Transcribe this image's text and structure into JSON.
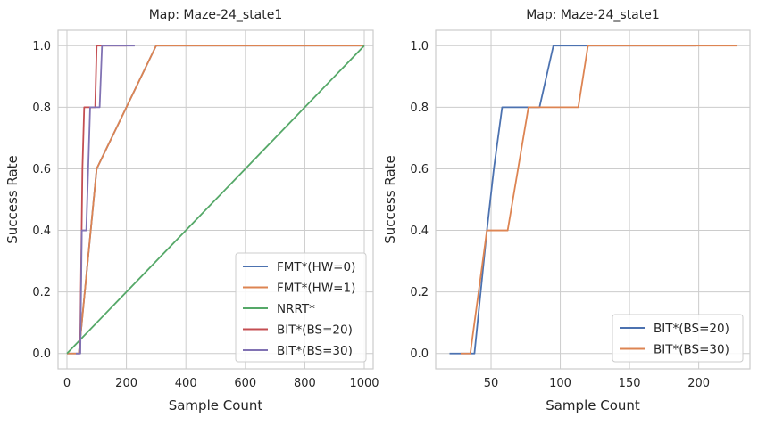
{
  "chart_data": [
    {
      "type": "line",
      "title": "Map: Maze-24_state1",
      "xlabel": "Sample Count",
      "ylabel": "Success Rate",
      "xlim": [
        -30,
        1030
      ],
      "ylim": [
        -0.05,
        1.05
      ],
      "xticks": [
        0,
        200,
        400,
        600,
        800,
        1000
      ],
      "yticks": [
        0.0,
        0.2,
        0.4,
        0.6,
        0.8,
        1.0
      ],
      "xtick_labels": [
        "0",
        "200",
        "400",
        "600",
        "800",
        "1000"
      ],
      "ytick_labels": [
        "0.0",
        "0.2",
        "0.4",
        "0.6",
        "0.8",
        "1.0"
      ],
      "grid": true,
      "legend_position": "lower-right",
      "series": [
        {
          "name": "FMT*(HW=0)",
          "color": "#4c72b0",
          "x": [
            0,
            40,
            100,
            300,
            1000
          ],
          "y": [
            0.0,
            0.0,
            0.6,
            1.0,
            1.0
          ]
        },
        {
          "name": "FMT*(HW=1)",
          "color": "#dd8452",
          "x": [
            0,
            40,
            100,
            300,
            1000
          ],
          "y": [
            0.0,
            0.0,
            0.6,
            1.0,
            1.0
          ]
        },
        {
          "name": "NRRT*",
          "color": "#55a868",
          "x": [
            0,
            1000
          ],
          "y": [
            0.0,
            1.0
          ]
        },
        {
          "name": "BIT*(BS=20)",
          "color": "#c44e52",
          "x": [
            40,
            44,
            52,
            58,
            60,
            85,
            95,
            100,
            110,
            200
          ],
          "y": [
            0.0,
            0.0,
            0.6,
            0.8,
            0.8,
            0.8,
            0.8,
            1.0,
            1.0,
            1.0
          ]
        },
        {
          "name": "BIT*(BS=30)",
          "color": "#8172b3",
          "x": [
            30,
            45,
            50,
            65,
            78,
            95,
            110,
            118,
            228
          ],
          "y": [
            0.0,
            0.0,
            0.4,
            0.4,
            0.8,
            0.8,
            0.8,
            1.0,
            1.0
          ]
        }
      ]
    },
    {
      "type": "line",
      "title": "Map: Maze-24_state1",
      "xlabel": "Sample Count",
      "ylabel": "Success Rate",
      "xlim": [
        10,
        237
      ],
      "ylim": [
        -0.05,
        1.05
      ],
      "xticks": [
        50,
        100,
        150,
        200
      ],
      "yticks": [
        0.0,
        0.2,
        0.4,
        0.6,
        0.8,
        1.0
      ],
      "xtick_labels": [
        "50",
        "100",
        "150",
        "200"
      ],
      "ytick_labels": [
        "0.0",
        "0.2",
        "0.4",
        "0.6",
        "0.8",
        "1.0"
      ],
      "grid": true,
      "legend_position": "lower-right",
      "series": [
        {
          "name": "BIT*(BS=20)",
          "color": "#4c72b0",
          "x": [
            20,
            38,
            47,
            52,
            58,
            60,
            85,
            95,
            100,
            198
          ],
          "y": [
            0.0,
            0.0,
            0.4,
            0.6,
            0.8,
            0.8,
            0.8,
            1.0,
            1.0,
            1.0
          ]
        },
        {
          "name": "BIT*(BS=30)",
          "color": "#dd8452",
          "x": [
            28,
            35,
            47,
            62,
            77,
            78,
            113,
            120,
            228
          ],
          "y": [
            0.0,
            0.0,
            0.4,
            0.4,
            0.8,
            0.8,
            0.8,
            1.0,
            1.0
          ]
        }
      ]
    }
  ]
}
